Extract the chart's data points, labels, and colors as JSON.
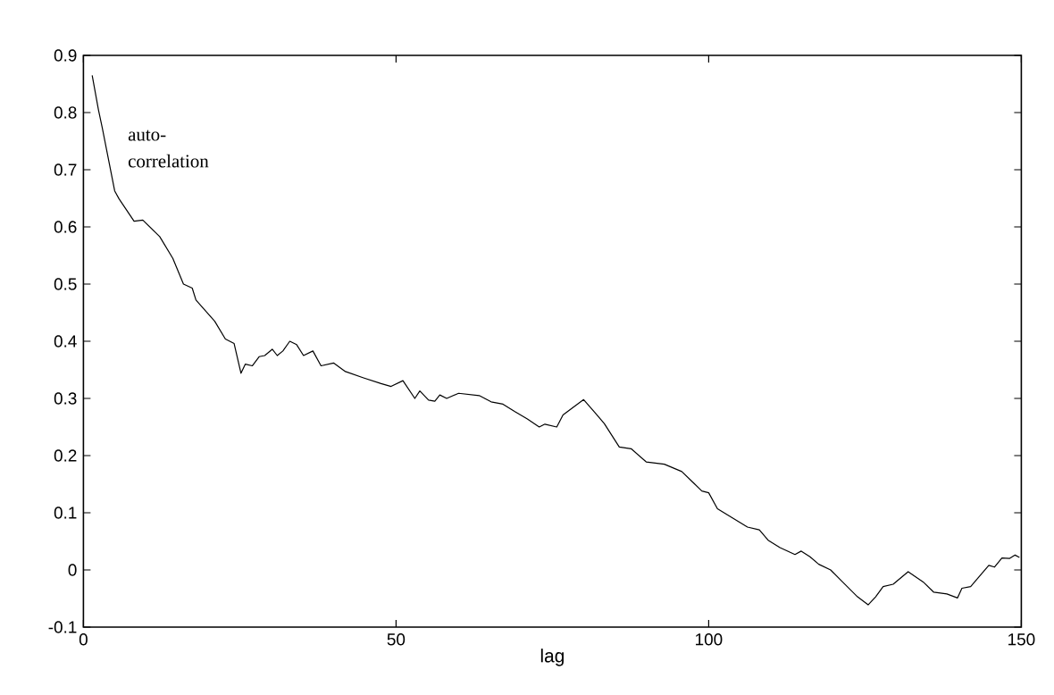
{
  "chart_data": {
    "type": "line",
    "xlabel": "lag",
    "annotations": [
      "auto-correlation"
    ],
    "xlim": [
      0,
      150
    ],
    "xticks": [
      0,
      50,
      100,
      150
    ],
    "ylim": [
      -0.1,
      0.9
    ],
    "yticks": [
      -0.1,
      0,
      0.1,
      0.2,
      0.3,
      0.4,
      0.5,
      0.6,
      0.7,
      0.8,
      0.9
    ],
    "marker": "none",
    "line_style": "solid",
    "series": [
      {
        "color": "#000000",
        "x": [
          1.4,
          2.4,
          3,
          5,
          5.7,
          8.1,
          9.5,
          12.2,
          14.3,
          16,
          17.4,
          18,
          21,
          22.7,
          24.1,
          25.2,
          25.9,
          27,
          28.1,
          29,
          30.2,
          31,
          31.9,
          33,
          34.1,
          35.2,
          36.7,
          38,
          40,
          41.9,
          44.8,
          47.6,
          49.2,
          51.1,
          53,
          53.8,
          55.2,
          56.2,
          57,
          58.1,
          60,
          63.3,
          65.2,
          67.1,
          69,
          71,
          72.9,
          73.8,
          75.7,
          76.7,
          80,
          81.9,
          83.3,
          85.7,
          87.6,
          90,
          92.9,
          95.7,
          97.6,
          98.9,
          100,
          101.4,
          103.8,
          106.2,
          108.1,
          109.5,
          111.4,
          113.8,
          114.8,
          116.2,
          117.6,
          119.5,
          121.4,
          123.8,
          125.5,
          126.7,
          127.9,
          129.5,
          131.9,
          134.3,
          136,
          138.1,
          139.8,
          140.5,
          141.9,
          143.3,
          144.8,
          145.7,
          146.9,
          148.1,
          149,
          149.7
        ],
        "values": [
          0.865,
          0.805,
          0.774,
          0.663,
          0.649,
          0.61,
          0.612,
          0.583,
          0.545,
          0.5,
          0.493,
          0.472,
          0.435,
          0.404,
          0.396,
          0.344,
          0.36,
          0.357,
          0.373,
          0.375,
          0.386,
          0.375,
          0.383,
          0.4,
          0.394,
          0.375,
          0.383,
          0.357,
          0.362,
          0.347,
          0.336,
          0.326,
          0.321,
          0.331,
          0.3,
          0.313,
          0.297,
          0.295,
          0.306,
          0.3,
          0.309,
          0.305,
          0.294,
          0.29,
          0.277,
          0.264,
          0.25,
          0.255,
          0.25,
          0.271,
          0.298,
          0.274,
          0.256,
          0.215,
          0.212,
          0.189,
          0.185,
          0.172,
          0.152,
          0.138,
          0.135,
          0.107,
          0.091,
          0.075,
          0.07,
          0.052,
          0.039,
          0.027,
          0.033,
          0.023,
          0.01,
          0.0,
          -0.021,
          -0.047,
          -0.061,
          -0.047,
          -0.029,
          -0.025,
          -0.003,
          -0.021,
          -0.039,
          -0.042,
          -0.049,
          -0.032,
          -0.029,
          -0.011,
          0.008,
          0.005,
          0.021,
          0.02,
          0.026,
          0.022
        ]
      }
    ]
  }
}
